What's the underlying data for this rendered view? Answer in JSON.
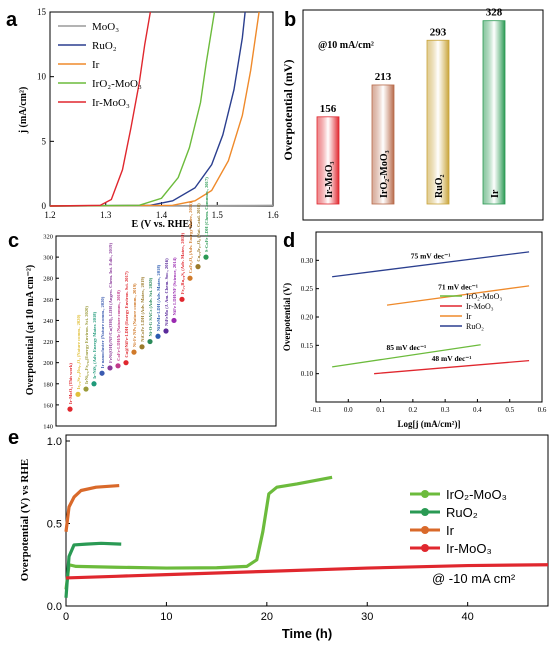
{
  "panels": {
    "a": {
      "letter": "a",
      "chart_data": {
        "type": "line",
        "xlabel": "E (V vs. RHE)",
        "ylabel": "j (mA/cm²)",
        "xlim": [
          1.2,
          1.6
        ],
        "ylim": [
          0,
          15
        ],
        "xticks": [
          "1.2",
          "1.3",
          "1.4",
          "1.5",
          "1.6"
        ],
        "yticks": [
          "0",
          "5",
          "10",
          "15"
        ],
        "legend_position": "top-left",
        "series": [
          {
            "name": "MoO₃",
            "color": "#9a9a9a",
            "points": [
              [
                1.2,
                0
              ],
              [
                1.6,
                0.05
              ]
            ]
          },
          {
            "name": "RuO₂",
            "color": "#2b3f8f",
            "points": [
              [
                1.2,
                0
              ],
              [
                1.38,
                0.05
              ],
              [
                1.42,
                0.4
              ],
              [
                1.46,
                1.4
              ],
              [
                1.49,
                3.2
              ],
              [
                1.51,
                5.5
              ],
              [
                1.53,
                9
              ],
              [
                1.545,
                13
              ],
              [
                1.55,
                15
              ]
            ]
          },
          {
            "name": "Ir",
            "color": "#ef8a2b",
            "points": [
              [
                1.2,
                0
              ],
              [
                1.42,
                0.05
              ],
              [
                1.46,
                0.4
              ],
              [
                1.49,
                1.2
              ],
              [
                1.52,
                3.5
              ],
              [
                1.545,
                7
              ],
              [
                1.56,
                10.5
              ],
              [
                1.575,
                15
              ]
            ]
          },
          {
            "name": "IrO₂-MoO₃",
            "color": "#6cbb3c",
            "points": [
              [
                1.2,
                0
              ],
              [
                1.36,
                0.05
              ],
              [
                1.4,
                0.6
              ],
              [
                1.43,
                2.2
              ],
              [
                1.45,
                4.5
              ],
              [
                1.47,
                8
              ],
              [
                1.48,
                11
              ],
              [
                1.495,
                15
              ]
            ]
          },
          {
            "name": "Ir-MoO₃",
            "color": "#e0272e",
            "points": [
              [
                1.2,
                0
              ],
              [
                1.29,
                0.05
              ],
              [
                1.31,
                0.5
              ],
              [
                1.33,
                2.8
              ],
              [
                1.345,
                6
              ],
              [
                1.36,
                9.5
              ],
              [
                1.37,
                12.5
              ],
              [
                1.38,
                15
              ]
            ]
          }
        ]
      }
    },
    "b": {
      "letter": "b",
      "chart_data": {
        "type": "bar",
        "annotation": "@10 mA/cm²",
        "ylabel": "Overpotential (mV)",
        "categories": [
          "Ir-MoO₃",
          "IrO₂-MoO₃",
          "RuO₂",
          "Ir"
        ],
        "values": [
          156,
          213,
          293,
          328
        ],
        "data_labels": [
          "156",
          "213",
          "293",
          "328"
        ],
        "ylim": [
          0,
          340
        ],
        "colors": [
          "#e0272e",
          "#b86a4a",
          "#c9a43a",
          "#2b9a54"
        ]
      }
    },
    "c": {
      "letter": "c",
      "chart_data": {
        "type": "scatter",
        "ylabel": "Overpotential (at 10 mA cm⁻²)",
        "ylim": [
          140,
          320
        ],
        "yticks": [
          "140",
          "160",
          "180",
          "200",
          "220",
          "240",
          "260",
          "280",
          "300",
          "320"
        ],
        "points": [
          {
            "value": 156,
            "label": "Ir-MoO₃ (This work)",
            "color": "#e0272e"
          },
          {
            "value": 170,
            "label": "Ir₀.₆Sr₀.₄Ru₀.₄O₃ (Nature comm., 2020)",
            "color": "#e1c03a"
          },
          {
            "value": 175,
            "label": "IrNi₀.₅₇Fe₀.₈₂(Energy Environ. Sci. 2020)",
            "color": "#9a9a3a"
          },
          {
            "value": 180,
            "label": "Ir-NiS₂ (Adv. Energy Mater. 2018)",
            "color": "#1f9a7a"
          },
          {
            "value": 190,
            "label": "Ir nanocluster (Nature comm., 2020)",
            "color": "#3a5ab0"
          },
          {
            "value": 195,
            "label": "FeNi(OH)/NF/Cu(OH)₂ LDH (Angew. Chem. Int. Edit., 2019)",
            "color": "#8a3a9a"
          },
          {
            "value": 197,
            "label": "CoFe-LDH/Ir (Nature comm., 2018)",
            "color": "#c03a8a"
          },
          {
            "value": 200,
            "label": "Cu@NiFe-LDH (Energy Environ. Sci. 2017)",
            "color": "#e0272e"
          },
          {
            "value": 210,
            "label": "Ni-Fe NPs (Nature comm., 2019)",
            "color": "#d07a2a"
          },
          {
            "value": 215,
            "label": "NiCoFe LDH (Adv. Mater., 2019)",
            "color": "#9a7a2a"
          },
          {
            "value": 220,
            "label": "Ni-O-G SACs (Adv. Sci. 2020)",
            "color": "#2a8a5a"
          },
          {
            "value": 225,
            "label": "NiFeMo-LDH (Adv. Mater., 2018)",
            "color": "#2a5ab0"
          },
          {
            "value": 230,
            "label": "NiFeMo (J. Am. Chem. Soc., 2016)",
            "color": "#5a2a9a"
          },
          {
            "value": 240,
            "label": "NiFe LDH/NF (Science, 2014)",
            "color": "#9a2ab0"
          },
          {
            "value": 260,
            "label": "Fe₂.₂Ru₀.₈S₂ (Adv. Mater., 2019)",
            "color": "#e0272e"
          },
          {
            "value": 280,
            "label": "CaFe₂O₄ (Adv. Energy Mater., 2016)",
            "color": "#d07a2a"
          },
          {
            "value": 291,
            "label": "Cu₀.₃Ir₀.₇O₈ (Nat. Catal. 2018)",
            "color": "#9a7a2a"
          },
          {
            "value": 300,
            "label": "S-CoFe LDH (Chem. Commun., 2017)",
            "color": "#2a9a54"
          }
        ]
      }
    },
    "d": {
      "letter": "d",
      "chart_data": {
        "type": "line",
        "xlabel": "Log[j (mA/cm²)]",
        "ylabel": "Overpotential (V)",
        "xlim": [
          -0.1,
          0.6
        ],
        "ylim": [
          0.05,
          0.35
        ],
        "xticks": [
          "-0.1",
          "0.0",
          "0.1",
          "0.2",
          "0.3",
          "0.4",
          "0.5",
          "0.6"
        ],
        "yticks": [
          "0.10",
          "0.15",
          "0.20",
          "0.25",
          "0.30"
        ],
        "legend_position": "center-right",
        "series": [
          {
            "name": "IrO₂-MoO₃",
            "color": "#6cbb3c",
            "label": "85 mV dec⁻¹",
            "points": [
              [
                -0.05,
                0.112
              ],
              [
                0.41,
                0.151
              ]
            ]
          },
          {
            "name": "Ir-MoO₃",
            "color": "#e0272e",
            "label": "48 mV dec⁻¹",
            "points": [
              [
                0.08,
                0.1
              ],
              [
                0.56,
                0.123
              ]
            ]
          },
          {
            "name": "Ir",
            "color": "#ef8a2b",
            "label": "71 mV dec⁻¹",
            "points": [
              [
                0.12,
                0.221
              ],
              [
                0.56,
                0.255
              ]
            ]
          },
          {
            "name": "RuO₂",
            "color": "#2b3f8f",
            "label": "75 mV dec⁻¹",
            "points": [
              [
                -0.05,
                0.271
              ],
              [
                0.56,
                0.315
              ]
            ]
          }
        ]
      }
    },
    "e": {
      "letter": "e",
      "annotation": "@ -10 mA cm²",
      "chart_data": {
        "type": "line",
        "xlabel": "Time (h)",
        "ylabel": "Overpotential (V) vs RHE",
        "xlim": [
          0,
          48
        ],
        "ylim": [
          0,
          1.0
        ],
        "xticks": [
          "0",
          "10",
          "20",
          "30",
          "40"
        ],
        "yticks": [
          "0.0",
          "0.5",
          "1.0"
        ],
        "legend_position": "center-right",
        "series": [
          {
            "name": "IrO₂-MoO₃",
            "color": "#6cbb3c",
            "points": [
              [
                0,
                0.1
              ],
              [
                0.3,
                0.25
              ],
              [
                1,
                0.24
              ],
              [
                5,
                0.235
              ],
              [
                10,
                0.23
              ],
              [
                15,
                0.232
              ],
              [
                18,
                0.24
              ],
              [
                19,
                0.28
              ],
              [
                19.6,
                0.45
              ],
              [
                20.2,
                0.68
              ],
              [
                21,
                0.72
              ],
              [
                23,
                0.74
              ],
              [
                26.5,
                0.78
              ]
            ]
          },
          {
            "name": "RuO₂",
            "color": "#2a9a54",
            "points": [
              [
                0,
                0.05
              ],
              [
                0.3,
                0.3
              ],
              [
                0.8,
                0.37
              ],
              [
                2,
                0.375
              ],
              [
                3.5,
                0.38
              ],
              [
                5.5,
                0.375
              ]
            ]
          },
          {
            "name": "Ir",
            "color": "#d9692a",
            "points": [
              [
                0,
                0.45
              ],
              [
                0.3,
                0.6
              ],
              [
                0.8,
                0.66
              ],
              [
                1.5,
                0.7
              ],
              [
                3,
                0.72
              ],
              [
                5.3,
                0.73
              ]
            ]
          },
          {
            "name": "Ir-MoO₃",
            "color": "#e0272e",
            "points": [
              [
                0,
                0.17
              ],
              [
                5,
                0.18
              ],
              [
                10,
                0.19
              ],
              [
                20,
                0.21
              ],
              [
                30,
                0.23
              ],
              [
                40,
                0.245
              ],
              [
                48,
                0.25
              ]
            ]
          }
        ]
      }
    }
  }
}
